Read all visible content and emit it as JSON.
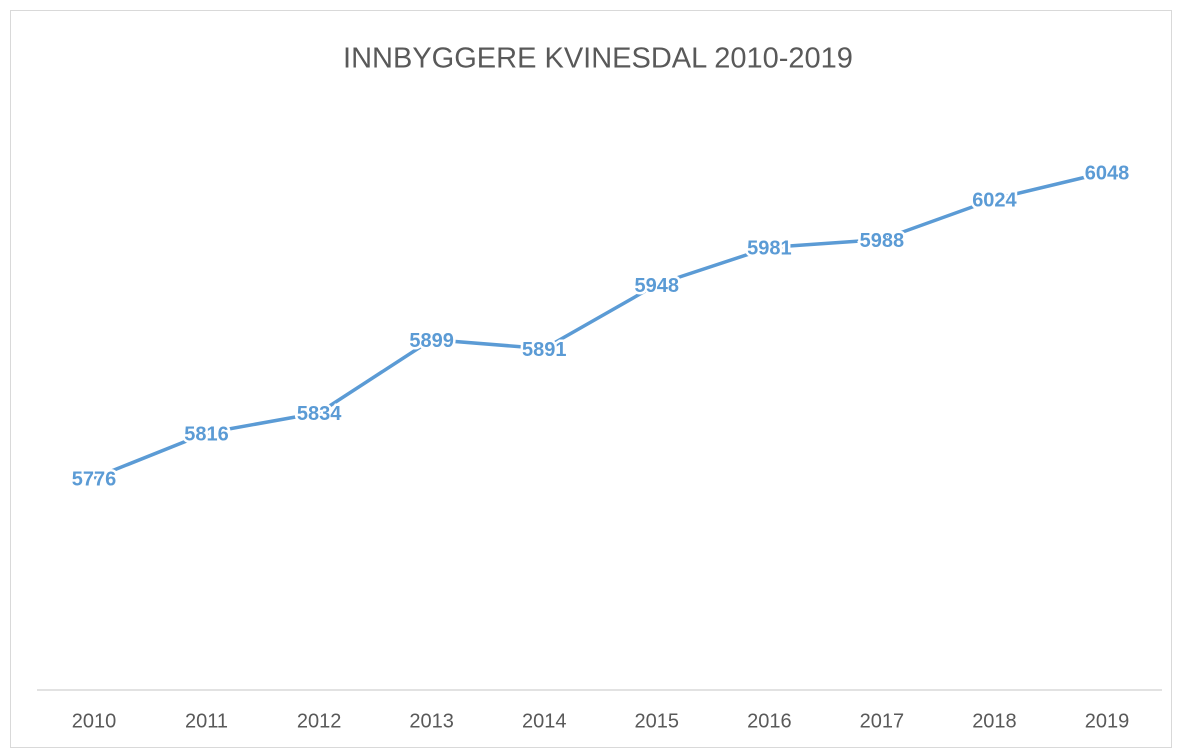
{
  "chart_data": {
    "type": "line",
    "title": "INNBYGGERE KVINESDAL 2010-2019",
    "categories": [
      "2010",
      "2011",
      "2012",
      "2013",
      "2014",
      "2015",
      "2016",
      "2017",
      "2018",
      "2019"
    ],
    "values": [
      5776,
      5816,
      5834,
      5899,
      5891,
      5948,
      5981,
      5988,
      6024,
      6048
    ],
    "color": "#5b9bd5",
    "ylim": [
      5600,
      6100
    ]
  }
}
